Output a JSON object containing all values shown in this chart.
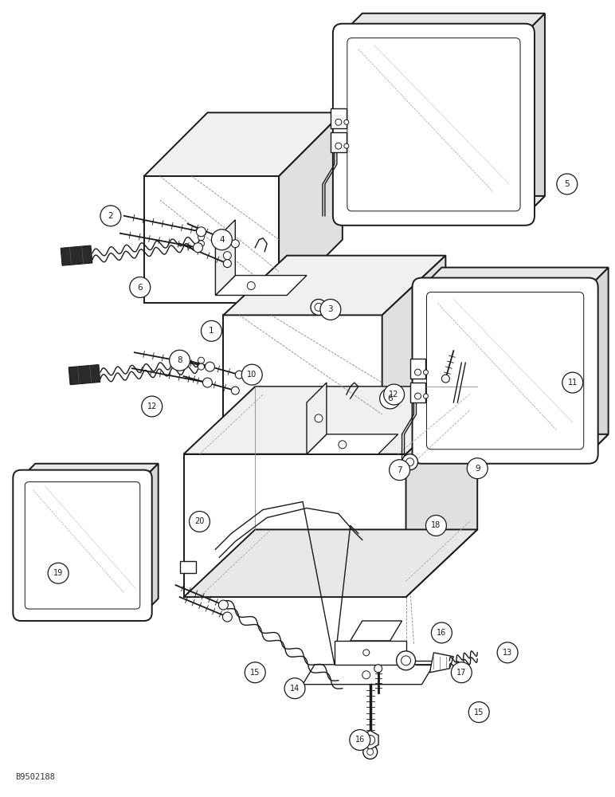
{
  "background_color": "#ffffff",
  "figure_width": 7.72,
  "figure_height": 10.0,
  "watermark": "B9502188",
  "line_color": "#1a1a1a",
  "lw_heavy": 1.4,
  "lw_medium": 1.0,
  "lw_light": 0.6
}
